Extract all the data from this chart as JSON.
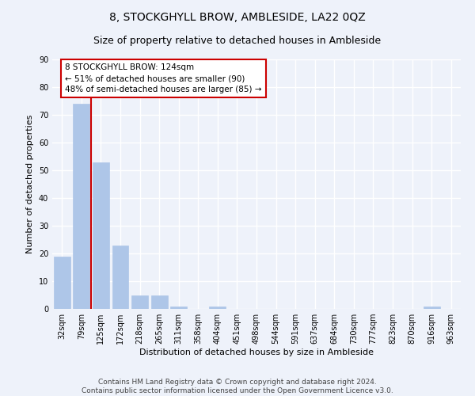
{
  "title": "8, STOCKGHYLL BROW, AMBLESIDE, LA22 0QZ",
  "subtitle": "Size of property relative to detached houses in Ambleside",
  "xlabel": "Distribution of detached houses by size in Ambleside",
  "ylabel": "Number of detached properties",
  "categories": [
    "32sqm",
    "79sqm",
    "125sqm",
    "172sqm",
    "218sqm",
    "265sqm",
    "311sqm",
    "358sqm",
    "404sqm",
    "451sqm",
    "498sqm",
    "544sqm",
    "591sqm",
    "637sqm",
    "684sqm",
    "730sqm",
    "777sqm",
    "823sqm",
    "870sqm",
    "916sqm",
    "963sqm"
  ],
  "values": [
    19,
    74,
    53,
    23,
    5,
    5,
    1,
    0,
    1,
    0,
    0,
    0,
    0,
    0,
    0,
    0,
    0,
    0,
    0,
    1,
    0
  ],
  "bar_color": "#aec6e8",
  "bar_edge_color": "#aec6e8",
  "property_line_color": "#cc0000",
  "annotation_text": "8 STOCKGHYLL BROW: 124sqm\n← 51% of detached houses are smaller (90)\n48% of semi-detached houses are larger (85) →",
  "annotation_box_color": "#ffffff",
  "annotation_box_edge_color": "#cc0000",
  "ylim": [
    0,
    90
  ],
  "yticks": [
    0,
    10,
    20,
    30,
    40,
    50,
    60,
    70,
    80,
    90
  ],
  "footer": "Contains HM Land Registry data © Crown copyright and database right 2024.\nContains public sector information licensed under the Open Government Licence v3.0.",
  "background_color": "#eef2fa",
  "grid_color": "#ffffff",
  "title_fontsize": 10,
  "subtitle_fontsize": 9,
  "axis_label_fontsize": 8,
  "tick_fontsize": 7,
  "annotation_fontsize": 7.5,
  "footer_fontsize": 6.5
}
